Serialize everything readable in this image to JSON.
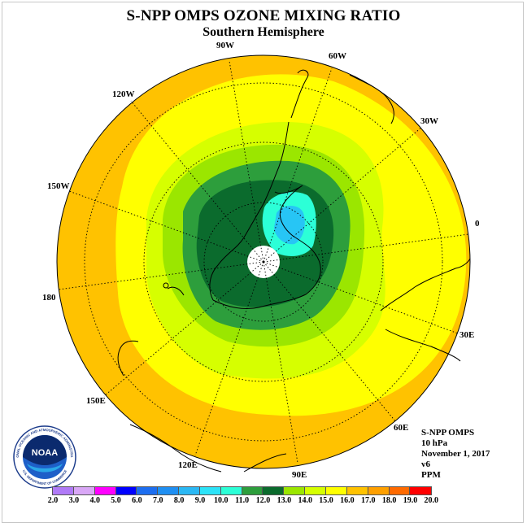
{
  "header": {
    "title": "S-NPP OMPS OZONE MIXING RATIO",
    "subtitle": "Southern Hemisphere"
  },
  "map": {
    "projection": "south-polar-stereographic",
    "longitude_labels": [
      "90W",
      "60W",
      "30W",
      "0",
      "30E",
      "60E",
      "90E",
      "120E",
      "150E",
      "180",
      "150W",
      "120W"
    ],
    "colors": {
      "outer": "#ffc200",
      "ring15": "#ffff00",
      "ring14": "#d6ff00",
      "ring13": "#9be600",
      "ring12": "#2d9e3c",
      "ring11": "#0b6b2d",
      "ring10": "#2cffd7",
      "ring9": "#27c5f5",
      "pole_hole": "#ffffff"
    }
  },
  "info": {
    "instrument": "S-NPP OMPS",
    "level": "10 hPa",
    "date": "November 1, 2017",
    "version": "v6",
    "units": "PPM"
  },
  "colorbar": {
    "labels": [
      "2.0",
      "3.0",
      "4.0",
      "5.0",
      "6.0",
      "7.0",
      "8.0",
      "9.0",
      "10.0",
      "11.0",
      "12.0",
      "13.0",
      "14.0",
      "15.0",
      "16.0",
      "17.0",
      "18.0",
      "19.0",
      "20.0"
    ],
    "colors": [
      "#b07af7",
      "#d9a7f6",
      "#ff00ff",
      "#0000ff",
      "#1d6ef0",
      "#1f8ff2",
      "#2bb8f4",
      "#2ce3f8",
      "#2cffd7",
      "#2d9e3c",
      "#0b6b2d",
      "#9be600",
      "#d6ff00",
      "#ffff00",
      "#ffc200",
      "#ffa000",
      "#ff6a00",
      "#ff0000",
      "#8b5a3c"
    ]
  },
  "logo": {
    "text": "NOAA",
    "ring_text": "NATIONAL OCEANIC AND ATMOSPHERIC ADMINISTRATION",
    "ring_text_bottom": "U.S. DEPARTMENT OF COMMERCE"
  }
}
